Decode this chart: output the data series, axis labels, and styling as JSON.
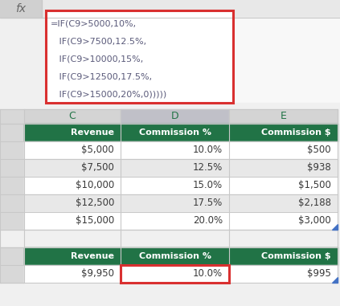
{
  "formula_lines": [
    "=IF(C9>5000,10%,",
    "   IF(C9>7500,12.5%,",
    "   IF(C9>10000,15%,",
    "   IF(C9>12500,17.5%,",
    "   IF(C9>15000,20%,0)))))"
  ],
  "formula_border_color": "#d93030",
  "formula_text_color": "#5a5a7a",
  "col_headers": [
    "C",
    "D",
    "E"
  ],
  "col_header_text_color": "#217346",
  "table_header_bg": "#217346",
  "table_header_text": "#ffffff",
  "row_colors": [
    "#ffffff",
    "#e8e8e8"
  ],
  "grid_color": "#c8c8c8",
  "header_bg": "#d4d4d4",
  "header_bg_selected": "#c0c0c8",
  "cell_text_color": "#3a3a3a",
  "fx_text_color": "#666666",
  "bg_color": "#f0f0f0",
  "data_rows": [
    [
      "$5,000",
      "10.0%",
      "$500"
    ],
    [
      "$7,500",
      "12.5%",
      "$938"
    ],
    [
      "$10,000",
      "15.0%",
      "$1,500"
    ],
    [
      "$12,500",
      "17.5%",
      "$2,188"
    ],
    [
      "$15,000",
      "20.0%",
      "$3,000"
    ]
  ],
  "bottom_header": [
    "Revenue",
    "Commission %",
    "Commission $"
  ],
  "bottom_data": [
    "$9,950",
    "10.0%",
    "$995"
  ],
  "highlight_color": "#d93030",
  "triangle_color": "#4472c4",
  "row_num_bg": "#d8d8d8",
  "sep_bg": "#f0f0f0",
  "white": "#ffffff",
  "fx_bar_bg": "#e8e8e8",
  "fx_box_bg": "#d0d0d0",
  "dotted_area_bg": "#f8f8f8"
}
